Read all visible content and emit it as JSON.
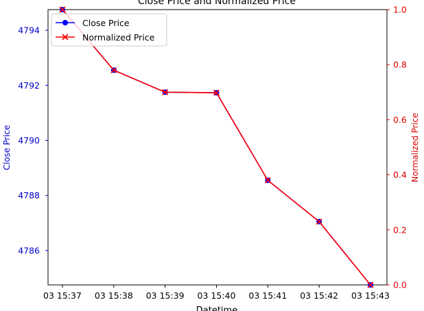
{
  "chart_data": {
    "type": "line",
    "title": "Close Price and Normalized Price",
    "xlabel": "Datetime",
    "ylabel_left": "Close Price",
    "ylabel_right": "Normalized Price",
    "categories": [
      "03 15:37",
      "03 15:38",
      "03 15:39",
      "03 15:40",
      "03 15:41",
      "03 15:42",
      "03 15:43"
    ],
    "series": [
      {
        "name": "Close Price",
        "axis": "left",
        "marker": "o",
        "color": "#0000ff",
        "values": [
          4794.75,
          4792.55,
          4791.75,
          4791.73,
          4788.55,
          4787.05,
          4784.75
        ]
      },
      {
        "name": "Normalized Price",
        "axis": "right",
        "marker": "x",
        "color": "#ff0000",
        "values": [
          1.0,
          0.78,
          0.7,
          0.698,
          0.38,
          0.23,
          0.0
        ]
      }
    ],
    "ylim_left": [
      4784.75,
      4794.75
    ],
    "yticks_left": [
      "4786",
      "4788",
      "4790",
      "4792",
      "4794"
    ],
    "ylim_right": [
      0,
      1
    ],
    "yticks_right": [
      "0.0",
      "0.2",
      "0.4",
      "0.6",
      "0.8",
      "1.0"
    ],
    "left_axis_color": "#0000cc",
    "right_axis_color": "#dd0000",
    "legend_placement": "upper-left",
    "grid": false
  }
}
